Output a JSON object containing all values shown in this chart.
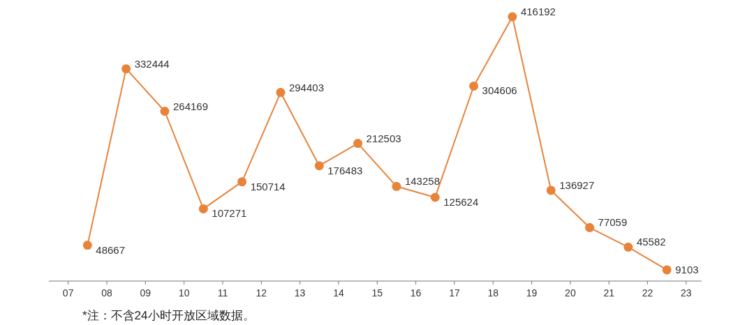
{
  "chart_data": {
    "type": "line",
    "x": [
      7.5,
      8.5,
      9.5,
      10.5,
      11.5,
      12.5,
      13.5,
      14.5,
      15.5,
      16.5,
      17.5,
      18.5,
      19.5,
      20.5,
      21.5,
      22.5
    ],
    "values": [
      48667,
      332444,
      264169,
      107271,
      150714,
      294403,
      176483,
      212503,
      143258,
      125624,
      304606,
      416192,
      136927,
      77059,
      45582,
      9103
    ],
    "color": "#e8833a",
    "marker": "circle",
    "data_labels": true,
    "xlim": [
      6.5,
      23.4
    ],
    "xticks": [
      {
        "value": 7,
        "label": "07"
      },
      {
        "value": 8,
        "label": "08"
      },
      {
        "value": 9,
        "label": "09"
      },
      {
        "value": 10,
        "label": "10"
      },
      {
        "value": 11,
        "label": "11"
      },
      {
        "value": 12,
        "label": "12"
      },
      {
        "value": 13,
        "label": "13"
      },
      {
        "value": 14,
        "label": "14"
      },
      {
        "value": 15,
        "label": "15"
      },
      {
        "value": 16,
        "label": "16"
      },
      {
        "value": 17,
        "label": "17"
      },
      {
        "value": 18,
        "label": "18"
      },
      {
        "value": 19,
        "label": "19"
      },
      {
        "value": 20,
        "label": "20"
      },
      {
        "value": 21,
        "label": "21"
      },
      {
        "value": 22,
        "label": "22"
      },
      {
        "value": 23,
        "label": "23"
      }
    ],
    "tick_labels": "x",
    "annotations": [
      "*注：不含24小时开放区域数据。"
    ]
  }
}
